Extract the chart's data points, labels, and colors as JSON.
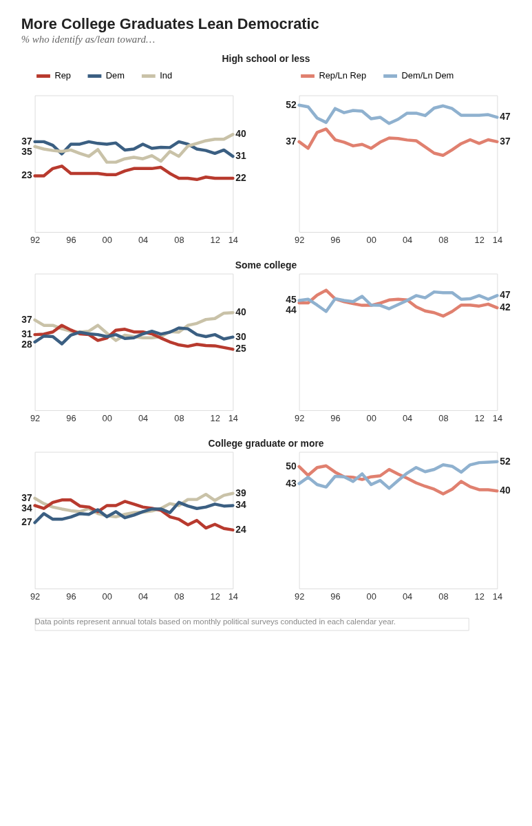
{
  "chart_data": [
    {
      "type": "line",
      "title": "More College Graduates Lean Democratic",
      "subtitle": "% who identify as/lean toward…",
      "annotations": [
        "High school or less"
      ],
      "legend": "top",
      "tick_labels": "x",
      "x": [
        1992,
        1993,
        1994,
        1995,
        1996,
        1997,
        1998,
        1999,
        2000,
        2001,
        2002,
        2003,
        2004,
        2005,
        2006,
        2007,
        2008,
        2009,
        2010,
        2011,
        2012,
        2013,
        2014
      ],
      "xlim": [
        1992,
        2014
      ],
      "xticks": [
        {
          "value": 1992,
          "label": "92"
        },
        {
          "value": 1996,
          "label": "96"
        },
        {
          "value": 2000,
          "label": "00"
        },
        {
          "value": 2004,
          "label": "04"
        },
        {
          "value": 2008,
          "label": "08"
        },
        {
          "value": 2012,
          "label": "12"
        },
        {
          "value": 2014,
          "label": "14"
        }
      ],
      "ylim": [
        0,
        56
      ],
      "series": [
        {
          "name": "Rep",
          "color": "#b83a2e",
          "values": [
            23,
            23,
            26,
            27,
            24,
            24,
            24,
            24,
            23.5,
            23.5,
            25,
            26,
            26,
            26,
            26.5,
            24,
            22,
            22,
            21.5,
            22.5,
            22,
            22,
            22
          ],
          "value_labels": [
            "23",
            null,
            null,
            null,
            null,
            null,
            null,
            null,
            null,
            null,
            null,
            null,
            null,
            null,
            null,
            null,
            null,
            null,
            null,
            null,
            null,
            null,
            "22"
          ]
        },
        {
          "name": "Dem",
          "color": "#3b5f82",
          "values": [
            37,
            37,
            35.5,
            32,
            36,
            36,
            37,
            36.3,
            36,
            36.5,
            33.6,
            34,
            36,
            34.3,
            34.7,
            34.6,
            37,
            36,
            34,
            33.4,
            32.2,
            33.6,
            31
          ],
          "value_labels": [
            "37",
            null,
            null,
            null,
            null,
            null,
            null,
            null,
            null,
            null,
            null,
            null,
            null,
            null,
            null,
            null,
            null,
            null,
            null,
            null,
            null,
            null,
            "31"
          ]
        },
        {
          "name": "Ind",
          "color": "#c9c2a8",
          "values": [
            35,
            34,
            33.4,
            33,
            33.6,
            32.2,
            31,
            33.8,
            28.6,
            28.6,
            30,
            30.6,
            30,
            31.3,
            29,
            33,
            31,
            35.2,
            36.3,
            37.4,
            38,
            38,
            40
          ],
          "value_labels": [
            "35",
            null,
            null,
            null,
            null,
            null,
            null,
            null,
            null,
            null,
            null,
            null,
            null,
            null,
            null,
            null,
            null,
            null,
            null,
            null,
            null,
            null,
            "40"
          ]
        }
      ]
    },
    {
      "type": "line",
      "legend": "top",
      "tick_labels": "x",
      "x": [
        1992,
        1993,
        1994,
        1995,
        1996,
        1997,
        1998,
        1999,
        2000,
        2001,
        2002,
        2003,
        2004,
        2005,
        2006,
        2007,
        2008,
        2009,
        2010,
        2011,
        2012,
        2013,
        2014
      ],
      "xlim": [
        1992,
        2014
      ],
      "xticks": [
        {
          "value": 1992,
          "label": "92"
        },
        {
          "value": 1996,
          "label": "96"
        },
        {
          "value": 2000,
          "label": "00"
        },
        {
          "value": 2004,
          "label": "04"
        },
        {
          "value": 2008,
          "label": "08"
        },
        {
          "value": 2012,
          "label": "12"
        },
        {
          "value": 2014,
          "label": "14"
        }
      ],
      "ylim": [
        0,
        56
      ],
      "series": [
        {
          "name": "Rep/Ln Rep",
          "color": "#e0806f",
          "values": [
            37,
            34.3,
            40.8,
            42.2,
            37.8,
            36.8,
            35.3,
            35.9,
            34.3,
            36.8,
            38.5,
            38.3,
            37.7,
            37.4,
            34.9,
            32.3,
            31.4,
            33.7,
            36.2,
            37.8,
            36.3,
            37.8,
            37
          ],
          "value_labels": [
            "37",
            null,
            null,
            null,
            null,
            null,
            null,
            null,
            null,
            null,
            null,
            null,
            null,
            null,
            null,
            null,
            null,
            null,
            null,
            null,
            null,
            null,
            "37"
          ]
        },
        {
          "name": "Dem/Ln Dem",
          "color": "#8fb1cf",
          "values": [
            52,
            51.3,
            46.7,
            44.9,
            50.6,
            48.9,
            49.8,
            49.5,
            46.4,
            47,
            44.5,
            46.2,
            48.7,
            48.7,
            47.7,
            50.8,
            51.7,
            50.6,
            47.8,
            47.8,
            47.8,
            48.1,
            47
          ],
          "value_labels": [
            "52",
            null,
            null,
            null,
            null,
            null,
            null,
            null,
            null,
            null,
            null,
            null,
            null,
            null,
            null,
            null,
            null,
            null,
            null,
            null,
            null,
            null,
            "47"
          ]
        }
      ]
    },
    {
      "type": "line",
      "annotations": [
        "Some college"
      ],
      "tick_labels": "x",
      "x": [
        1992,
        1993,
        1994,
        1995,
        1996,
        1997,
        1998,
        1999,
        2000,
        2001,
        2002,
        2003,
        2004,
        2005,
        2006,
        2007,
        2008,
        2009,
        2010,
        2011,
        2012,
        2013,
        2014
      ],
      "xlim": [
        1992,
        2014
      ],
      "xticks": [
        {
          "value": 1992,
          "label": "92"
        },
        {
          "value": 1996,
          "label": "96"
        },
        {
          "value": 2000,
          "label": "00"
        },
        {
          "value": 2004,
          "label": "04"
        },
        {
          "value": 2008,
          "label": "08"
        },
        {
          "value": 2012,
          "label": "12"
        },
        {
          "value": 2014,
          "label": "14"
        }
      ],
      "ylim": [
        0,
        56
      ],
      "series": [
        {
          "color": "#c9c2a8",
          "values": [
            37,
            34.8,
            34.8,
            33.4,
            32.4,
            32,
            32.4,
            34.8,
            31.6,
            28.6,
            30.8,
            30.2,
            29.7,
            29.7,
            30.2,
            32.2,
            32,
            34.8,
            35.6,
            37.2,
            37.6,
            39.8,
            40
          ],
          "value_labels": [
            "37",
            null,
            null,
            null,
            null,
            null,
            null,
            null,
            null,
            null,
            null,
            null,
            null,
            null,
            null,
            null,
            null,
            null,
            null,
            null,
            null,
            null,
            "40"
          ]
        },
        {
          "color": "#b83a2e",
          "values": [
            31,
            31.2,
            32.1,
            34.8,
            32.9,
            31.3,
            31,
            28.6,
            29.6,
            32.8,
            33.2,
            32.1,
            32.1,
            31.3,
            29.6,
            28,
            26.8,
            26.2,
            27,
            26.5,
            26.4,
            25.7,
            25
          ],
          "value_labels": [
            "31",
            null,
            null,
            null,
            null,
            null,
            null,
            null,
            null,
            null,
            null,
            null,
            null,
            null,
            null,
            null,
            null,
            null,
            null,
            null,
            null,
            null,
            "25"
          ]
        },
        {
          "color": "#3b5f82",
          "values": [
            28,
            30.4,
            30.2,
            27.2,
            30.8,
            32,
            31.3,
            31,
            30.2,
            31,
            29.4,
            29.7,
            31.3,
            32.4,
            31.2,
            32,
            33.7,
            33.4,
            31,
            30.2,
            31,
            29.2,
            30
          ],
          "value_labels": [
            "28",
            null,
            null,
            null,
            null,
            null,
            null,
            null,
            null,
            null,
            null,
            null,
            null,
            null,
            null,
            null,
            null,
            null,
            null,
            null,
            null,
            null,
            "30"
          ]
        }
      ]
    },
    {
      "type": "line",
      "tick_labels": "x",
      "x": [
        1992,
        1993,
        1994,
        1995,
        1996,
        1997,
        1998,
        1999,
        2000,
        2001,
        2002,
        2003,
        2004,
        2005,
        2006,
        2007,
        2008,
        2009,
        2010,
        2011,
        2012,
        2013,
        2014
      ],
      "xlim": [
        1992,
        2014
      ],
      "xticks": [
        {
          "value": 1992,
          "label": "92"
        },
        {
          "value": 1996,
          "label": "96"
        },
        {
          "value": 2000,
          "label": "00"
        },
        {
          "value": 2004,
          "label": "04"
        },
        {
          "value": 2008,
          "label": "08"
        },
        {
          "value": 2012,
          "label": "12"
        },
        {
          "value": 2014,
          "label": "14"
        }
      ],
      "ylim": [
        0,
        56
      ],
      "series": [
        {
          "color": "#e0806f",
          "values": [
            44,
            44,
            47.2,
            49.2,
            45.7,
            44.5,
            43.7,
            43,
            43,
            43.9,
            45.2,
            45.5,
            45.2,
            42.4,
            40.7,
            40,
            38.6,
            40.5,
            43.1,
            43.1,
            42.7,
            43.5,
            42
          ],
          "value_labels": [
            "44",
            null,
            null,
            null,
            null,
            null,
            null,
            null,
            null,
            null,
            null,
            null,
            null,
            null,
            null,
            null,
            null,
            null,
            null,
            null,
            null,
            null,
            "42"
          ]
        },
        {
          "color": "#8fb1cf",
          "values": [
            45,
            45.5,
            43.1,
            40.5,
            45.7,
            45,
            44.5,
            46.7,
            43.1,
            43,
            41.6,
            43.3,
            45,
            47,
            46.1,
            48.5,
            48.2,
            48.2,
            45.5,
            45.7,
            47,
            45.5,
            47
          ],
          "value_labels": [
            "45",
            null,
            null,
            null,
            null,
            null,
            null,
            null,
            null,
            null,
            null,
            null,
            null,
            null,
            null,
            null,
            null,
            null,
            null,
            null,
            null,
            null,
            "47"
          ]
        }
      ]
    },
    {
      "type": "line",
      "annotations": [
        "College graduate or more"
      ],
      "tick_labels": "x",
      "x": [
        1992,
        1993,
        1994,
        1995,
        1996,
        1997,
        1998,
        1999,
        2000,
        2001,
        2002,
        2003,
        2004,
        2005,
        2006,
        2007,
        2008,
        2009,
        2010,
        2011,
        2012,
        2013,
        2014
      ],
      "xlim": [
        1992,
        2014
      ],
      "xticks": [
        {
          "value": 1992,
          "label": "92"
        },
        {
          "value": 1996,
          "label": "96"
        },
        {
          "value": 2000,
          "label": "00"
        },
        {
          "value": 2004,
          "label": "04"
        },
        {
          "value": 2008,
          "label": "08"
        },
        {
          "value": 2012,
          "label": "12"
        },
        {
          "value": 2014,
          "label": "14"
        }
      ],
      "ylim": [
        0,
        56
      ],
      "series": [
        {
          "color": "#c9c2a8",
          "values": [
            37,
            34.8,
            33.4,
            32.6,
            31.9,
            31.5,
            32.8,
            30.7,
            29.8,
            29.4,
            30.4,
            31.1,
            31.3,
            31.8,
            32.8,
            34.8,
            34,
            36.5,
            36.5,
            38.6,
            36.1,
            38.2,
            39
          ],
          "value_labels": [
            "37",
            null,
            null,
            null,
            null,
            null,
            null,
            null,
            null,
            null,
            null,
            null,
            null,
            null,
            null,
            null,
            null,
            null,
            null,
            null,
            null,
            null,
            "39"
          ]
        },
        {
          "color": "#b83a2e",
          "values": [
            34,
            32.8,
            35.3,
            36.3,
            36.3,
            33.8,
            33.4,
            31.5,
            34,
            34,
            35.7,
            34.6,
            33.4,
            32.9,
            32.1,
            29.4,
            28.4,
            26.1,
            27.9,
            24.8,
            26.3,
            24.6,
            24
          ],
          "value_labels": [
            "34",
            null,
            null,
            null,
            null,
            null,
            null,
            null,
            null,
            null,
            null,
            null,
            null,
            null,
            null,
            null,
            null,
            null,
            null,
            null,
            null,
            null,
            "24"
          ]
        },
        {
          "color": "#3b5f82",
          "values": [
            27,
            30.7,
            28.4,
            28.4,
            29.3,
            30.7,
            30.4,
            32.3,
            29.4,
            31.5,
            29,
            30.1,
            31.5,
            32.6,
            32.6,
            31.1,
            35.3,
            33.8,
            32.8,
            33.4,
            34.6,
            33.8,
            34
          ],
          "value_labels": [
            "27",
            null,
            null,
            null,
            null,
            null,
            null,
            null,
            null,
            null,
            null,
            null,
            null,
            null,
            null,
            null,
            null,
            null,
            null,
            null,
            null,
            null,
            "34"
          ]
        }
      ]
    },
    {
      "type": "line",
      "annotations": [
        "Data points represent annual totals based on monthly political surveys conducted in each calendar year."
      ],
      "tick_labels": "x",
      "x": [
        1992,
        1993,
        1994,
        1995,
        1996,
        1997,
        1998,
        1999,
        2000,
        2001,
        2002,
        2003,
        2004,
        2005,
        2006,
        2007,
        2008,
        2009,
        2010,
        2011,
        2012,
        2013,
        2014
      ],
      "xlim": [
        1992,
        2014
      ],
      "xticks": [
        {
          "value": 1992,
          "label": "92"
        },
        {
          "value": 1996,
          "label": "96"
        },
        {
          "value": 2000,
          "label": "00"
        },
        {
          "value": 2004,
          "label": "04"
        },
        {
          "value": 2008,
          "label": "08"
        },
        {
          "value": 2012,
          "label": "12"
        },
        {
          "value": 2014,
          "label": "14"
        }
      ],
      "ylim": [
        0,
        56
      ],
      "series": [
        {
          "color": "#e0806f",
          "values": [
            50,
            46.4,
            49.6,
            50.3,
            47.7,
            45.8,
            45.6,
            44.7,
            45.8,
            46.2,
            48.8,
            46.9,
            45.2,
            43.3,
            41.9,
            40.7,
            38.8,
            40.7,
            43.9,
            41.7,
            40.5,
            40.5,
            40
          ],
          "value_labels": [
            "50",
            null,
            null,
            null,
            null,
            null,
            null,
            null,
            null,
            null,
            null,
            null,
            null,
            null,
            null,
            null,
            null,
            null,
            null,
            null,
            null,
            null,
            "40"
          ]
        },
        {
          "color": "#8fb1cf",
          "values": [
            43,
            45.6,
            42.6,
            41.6,
            46,
            45.8,
            43.9,
            47,
            42.6,
            44.3,
            41.1,
            44.3,
            47.3,
            49.6,
            47.9,
            48.8,
            50.7,
            50.1,
            47.7,
            50.7,
            51.6,
            51.8,
            52
          ],
          "value_labels": [
            "43",
            null,
            null,
            null,
            null,
            null,
            null,
            null,
            null,
            null,
            null,
            null,
            null,
            null,
            null,
            null,
            null,
            null,
            null,
            null,
            null,
            null,
            "52"
          ]
        }
      ]
    }
  ]
}
